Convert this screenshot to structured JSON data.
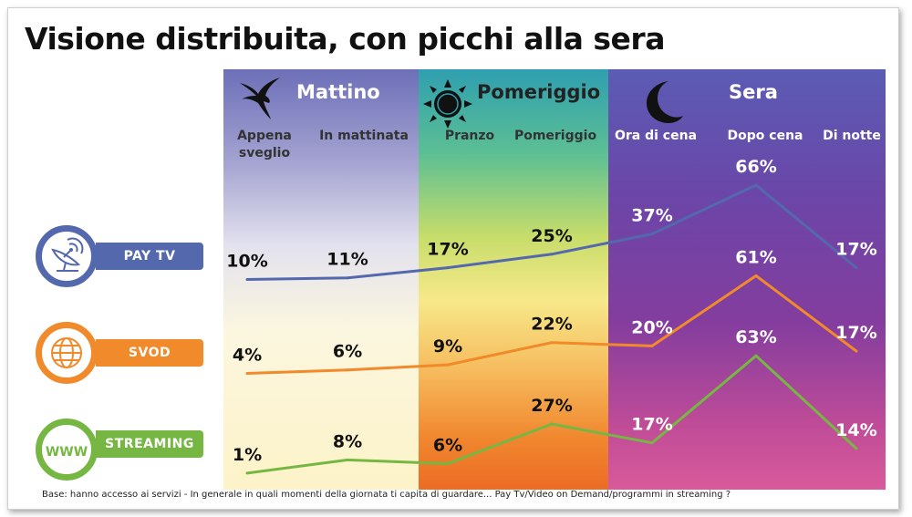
{
  "title": "Visione distribuita, con picchi alla sera",
  "periods": [
    {
      "name": "Mattino",
      "icon": "swallow-bird-icon"
    },
    {
      "name": "Pomeriggio",
      "icon": "sun-icon"
    },
    {
      "name": "Sera",
      "icon": "crescent-moon-icon"
    }
  ],
  "services": [
    {
      "label": "PAY TV",
      "icon": "satellite-dish-icon",
      "color": "#5468ad"
    },
    {
      "label": "SVOD",
      "icon": "globe-icon",
      "color": "#f08a2a"
    },
    {
      "label": "STREAMING",
      "icon": "www-icon",
      "icon_text": "WWW",
      "color": "#76b743"
    }
  ],
  "chart_data": {
    "type": "line",
    "title": "Visione distribuita, con picchi alla sera",
    "categories": [
      "Appena sveglio",
      "In mattinata",
      "Pranzo",
      "Pomeriggio",
      "Ora di cena",
      "Dopo cena",
      "Di notte"
    ],
    "groups": [
      {
        "name": "Mattino",
        "categories": [
          "Appena sveglio",
          "In mattinata"
        ]
      },
      {
        "name": "Pomeriggio",
        "categories": [
          "Pranzo",
          "Pomeriggio"
        ]
      },
      {
        "name": "Sera",
        "categories": [
          "Ora di cena",
          "Dopo cena",
          "Di notte"
        ]
      }
    ],
    "series": [
      {
        "name": "PAY TV",
        "color": "#5468ad",
        "values": [
          10,
          11,
          17,
          25,
          37,
          66,
          17
        ],
        "labels": [
          "10%",
          "11%",
          "17%",
          "25%",
          "37%",
          "66%",
          "17%"
        ]
      },
      {
        "name": "SVOD",
        "color": "#f08a2a",
        "values": [
          4,
          6,
          9,
          22,
          20,
          61,
          17
        ],
        "labels": [
          "4%",
          "6%",
          "9%",
          "22%",
          "20%",
          "61%",
          "17%"
        ]
      },
      {
        "name": "STREAMING",
        "color": "#76b743",
        "values": [
          1,
          8,
          6,
          27,
          17,
          63,
          14
        ],
        "labels": [
          "1%",
          "8%",
          "6%",
          "27%",
          "17%",
          "63%",
          "14%"
        ]
      }
    ],
    "unit": "%",
    "grid": false,
    "legend": "left"
  },
  "footnote": "Base: hanno accesso ai servizi - In generale in quali momenti della giornata ti capita di guardare... Pay Tv/Video on Demand/programmi in streaming ?"
}
